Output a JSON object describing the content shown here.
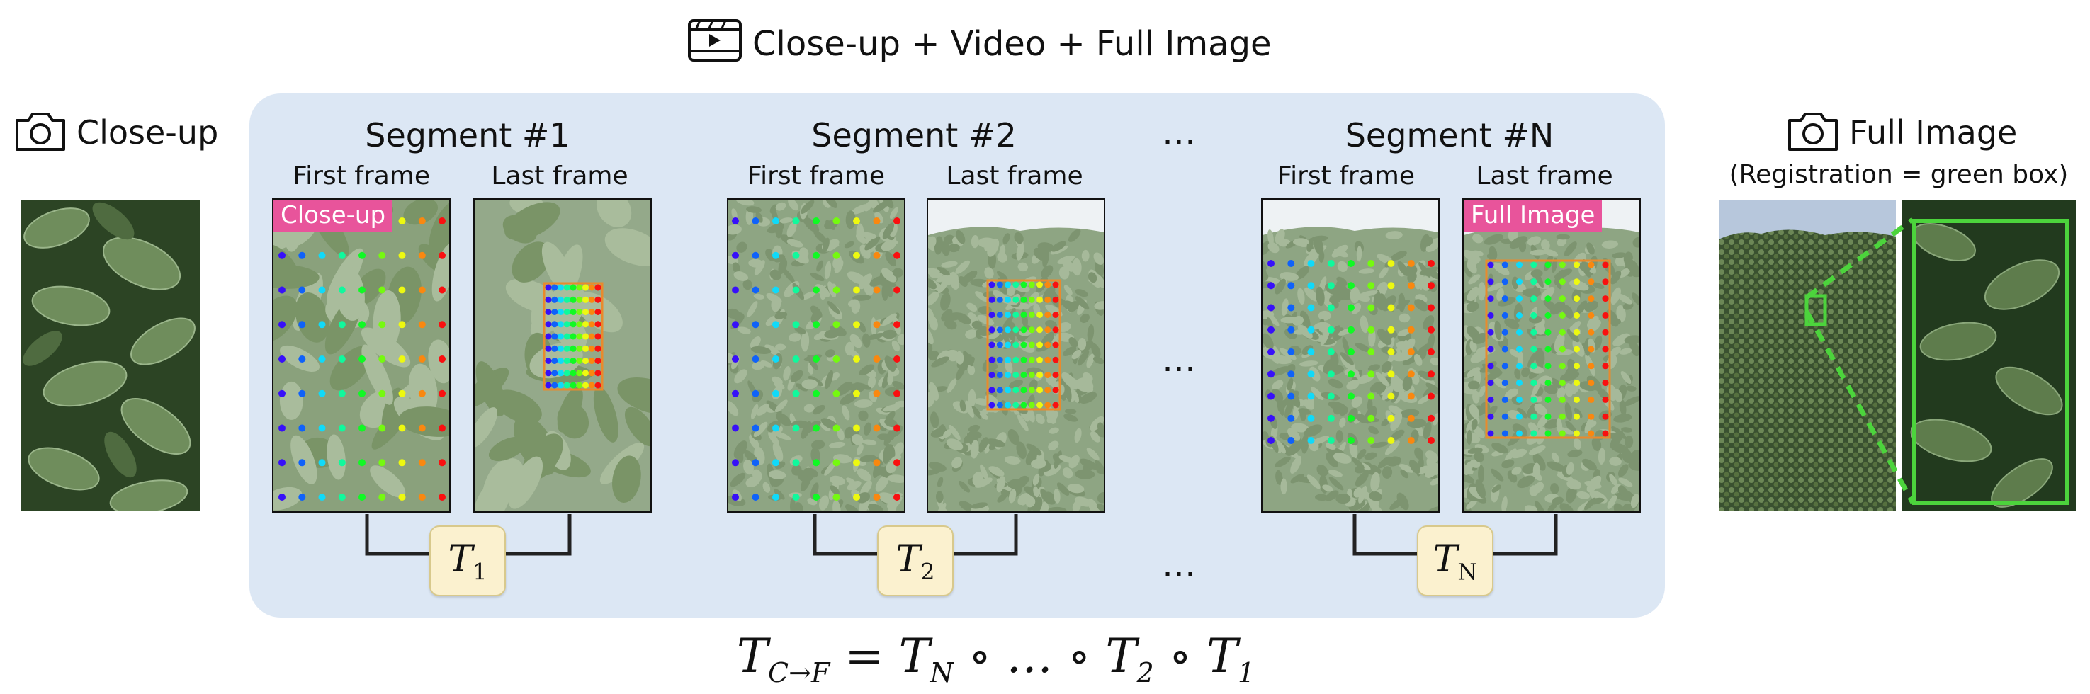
{
  "header": {
    "title": "Close-up + Video + Full Image",
    "icon": "film-icon"
  },
  "closeup": {
    "label": "Close-up",
    "icon": "camera-icon"
  },
  "full_image": {
    "label": "Full Image",
    "sublabel": "(Registration = green box)",
    "icon": "camera-icon",
    "box_color": "#4cd43c"
  },
  "segments": [
    {
      "title": "Segment #1",
      "first_label": "First frame",
      "last_label": "Last frame",
      "badge": "Close-up",
      "transform": "T",
      "transform_sub": "1"
    },
    {
      "title": "Segment #2",
      "first_label": "First frame",
      "last_label": "Last frame",
      "transform": "T",
      "transform_sub": "2"
    },
    {
      "title": "Segment #N",
      "first_label": "First frame",
      "last_label": "Last frame",
      "badge": "Full Image",
      "transform": "T",
      "transform_sub": "N"
    }
  ],
  "ellipsis": "…",
  "formula": {
    "lhs": "T",
    "lhs_sub": "C→F",
    "rhs": "= T",
    "rhs_sub": "N",
    "rest": "∘ … ∘ T",
    "rest_sub": "2",
    "tail": "∘ T",
    "tail_sub": "1"
  },
  "colors": {
    "panel": "#dce7f4",
    "badge": "#e8549b",
    "transform_box": "#fbf1cf",
    "leaf_dark": "#2f4a2a",
    "leaf_light": "#7f9a6a"
  }
}
